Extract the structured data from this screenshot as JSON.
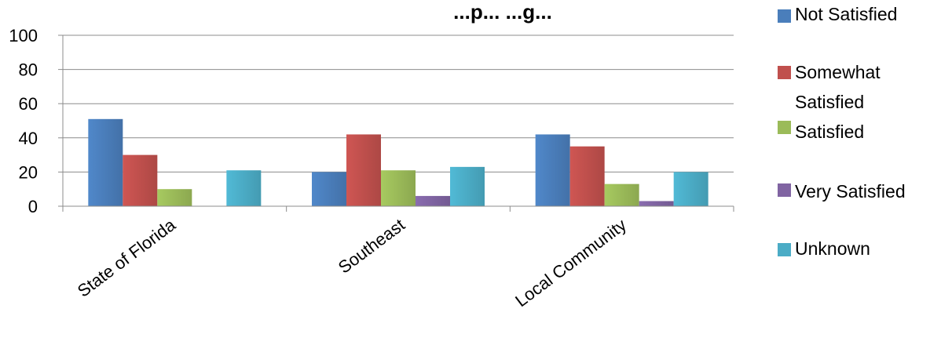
{
  "chart_data": {
    "type": "bar",
    "title": "...p... ...g...",
    "categories": [
      "State of Florida",
      "Southeast",
      "Local Community"
    ],
    "series": [
      {
        "name": "Not Satisfied",
        "color": "#4A7EBB",
        "values": [
          51,
          20,
          42
        ]
      },
      {
        "name": "Somewhat Satisfied",
        "color": "#C0504D",
        "values": [
          30,
          42,
          35
        ]
      },
      {
        "name": "Satisfied",
        "color": "#9BBB59",
        "values": [
          10,
          21,
          13
        ]
      },
      {
        "name": "Very Satisfied",
        "color": "#8064A2",
        "values": [
          0,
          6,
          3
        ]
      },
      {
        "name": "Unknown",
        "color": "#4BACC6",
        "values": [
          21,
          23,
          20
        ]
      }
    ],
    "ylim": [
      0,
      100
    ],
    "yticks": [
      0,
      20,
      40,
      60,
      80,
      100
    ],
    "grid": true,
    "legend": "right",
    "xlabel": "",
    "ylabel": ""
  }
}
